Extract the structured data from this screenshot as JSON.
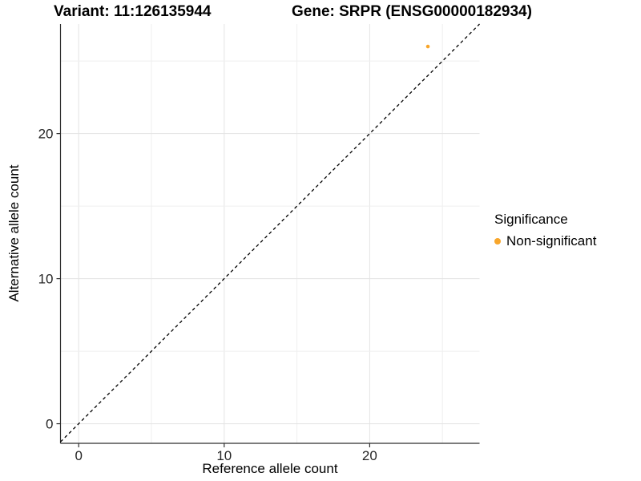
{
  "titles": {
    "variant": "Variant: 11:126135944",
    "gene": "Gene: SRPR (ENSG00000182934)"
  },
  "legend": {
    "title": "Significance",
    "items": [
      {
        "label": "Non-significant",
        "color": "#F8A62B"
      }
    ]
  },
  "chart_data": {
    "type": "scatter",
    "title": "Variant: 11:126135944  Gene: SRPR (ENSG00000182934)",
    "xlabel": "Reference allele count",
    "ylabel": "Alternative allele count",
    "xlim": [
      -1.25,
      27.55
    ],
    "ylim": [
      -1.35,
      27.55
    ],
    "x_ticks": [
      0,
      10,
      20
    ],
    "y_ticks": [
      0,
      10,
      20
    ],
    "grid_step": 5,
    "grid": true,
    "legend_position": "right",
    "series": [
      {
        "name": "Non-significant",
        "color": "#F8A62B",
        "points": [
          {
            "x": 24,
            "y": 26
          }
        ]
      }
    ],
    "reference_line": {
      "type": "identity",
      "style": "dashed",
      "color": "#000000"
    }
  },
  "colors": {
    "background": "#FFFFFF",
    "grid_major": "#E3E3E3",
    "grid_minor": "#EFEFEF",
    "axis_line": "#2F2F2F",
    "tick_text": "#262626",
    "point": "#F8A62B",
    "dashed_line": "#000000"
  }
}
